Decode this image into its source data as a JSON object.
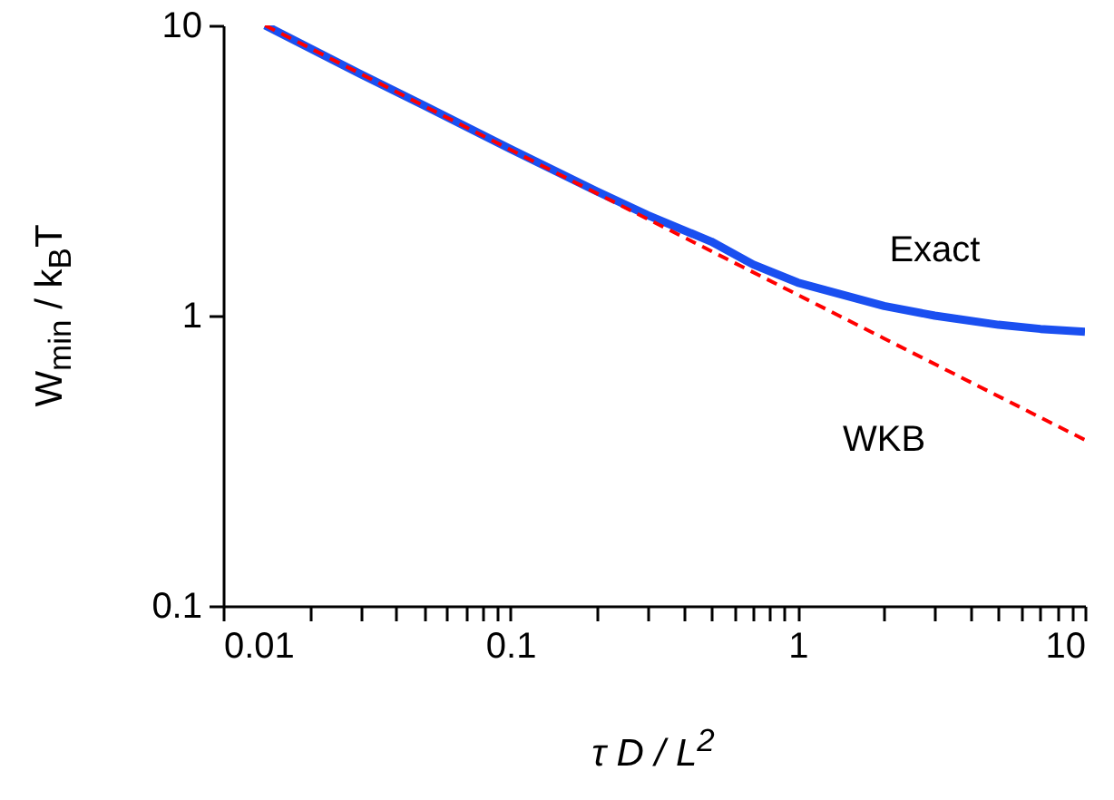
{
  "chart_data": {
    "type": "line",
    "xlabel": "τ D / L$^{2}$",
    "ylabel": "W$_{min}$ / k$_{B}$T",
    "log": "xy",
    "grid": false,
    "marker": "none",
    "xlim": [
      0.01,
      10
    ],
    "ylim": [
      0.1,
      10
    ],
    "xticks": [
      0.01,
      {
        "value": 0.02,
        "label": null
      },
      {
        "value": 0.03,
        "label": null
      },
      {
        "value": 0.04,
        "label": null
      },
      {
        "value": 0.05,
        "label": null
      },
      {
        "value": 0.06,
        "label": null
      },
      {
        "value": 0.07,
        "label": null
      },
      {
        "value": 0.08,
        "label": null
      },
      {
        "value": 0.09,
        "label": null
      },
      0.1,
      {
        "value": 0.2,
        "label": null
      },
      {
        "value": 0.3,
        "label": null
      },
      {
        "value": 0.4,
        "label": null
      },
      {
        "value": 0.5,
        "label": null
      },
      {
        "value": 0.6,
        "label": null
      },
      {
        "value": 0.7,
        "label": null
      },
      {
        "value": 0.8,
        "label": null
      },
      {
        "value": 0.9,
        "label": null
      },
      1,
      {
        "value": 2,
        "label": null
      },
      {
        "value": 3,
        "label": null
      },
      {
        "value": 4,
        "label": null
      },
      {
        "value": 5,
        "label": null
      },
      {
        "value": 6,
        "label": null
      },
      {
        "value": 7,
        "label": null
      },
      {
        "value": 8,
        "label": null
      },
      {
        "value": 9,
        "label": null
      },
      10
    ],
    "yticks": [
      0.1,
      1,
      10
    ],
    "series": [
      {
        "name": "Exact",
        "color": "#1a4ff0",
        "line_style": "solid",
        "x": [
          0.014,
          0.03,
          0.05,
          0.1,
          0.2,
          0.3,
          0.5,
          0.7,
          1,
          2,
          3,
          5,
          7,
          10
        ],
        "values": [
          10,
          6.8,
          5.3,
          3.75,
          2.68,
          2.22,
          1.8,
          1.5,
          1.3,
          1.08,
          1.0,
          0.93,
          0.9,
          0.88
        ]
      },
      {
        "name": "WKB",
        "color": "#ff0000",
        "line_style": "dashed",
        "x": [
          0.014,
          0.1,
          1,
          2,
          10
        ],
        "values": [
          10,
          3.73,
          1.18,
          0.834,
          0.373
        ]
      }
    ]
  }
}
